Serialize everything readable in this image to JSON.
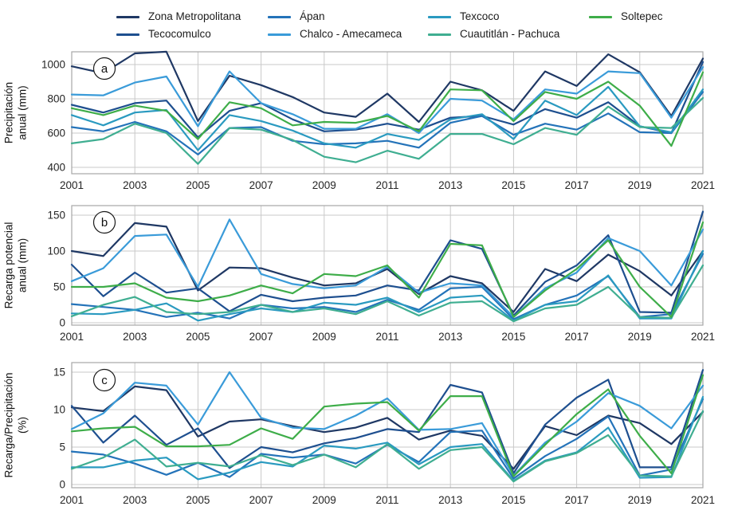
{
  "legend": {
    "items": [
      {
        "label": "Zona Metropolitana",
        "color": "#1f3864"
      },
      {
        "label": "Tecocomulco",
        "color": "#1e4f8f"
      },
      {
        "label": "Ápan",
        "color": "#2473b9"
      },
      {
        "label": "Chalco - Amecameca",
        "color": "#3a9bd9"
      },
      {
        "label": "Texcoco",
        "color": "#2a9ac0"
      },
      {
        "label": "Cuautitlán - Pachuca",
        "color": "#3fae91"
      },
      {
        "label": "Soltepec",
        "color": "#3ead49"
      }
    ]
  },
  "chart_data": [
    {
      "type": "line",
      "panel_label": "a",
      "ylabel": "Precipitación anual (mm)",
      "ylabel_lines": [
        "Precipitación",
        "anual (mm)"
      ],
      "ylim": [
        400,
        1000
      ],
      "yticks": [
        400,
        600,
        800,
        1000
      ],
      "grid": true,
      "legend_position": "top",
      "x": [
        2001,
        2002,
        2003,
        2004,
        2005,
        2006,
        2007,
        2008,
        2009,
        2010,
        2011,
        2012,
        2013,
        2014,
        2015,
        2016,
        2017,
        2018,
        2019,
        2020,
        2021
      ],
      "xticks": [
        2001,
        2003,
        2005,
        2007,
        2009,
        2011,
        2013,
        2015,
        2017,
        2019,
        2021
      ],
      "series": [
        {
          "name": "Zona Metropolitana",
          "color": "#1f3864",
          "values": [
            990,
            950,
            1065,
            1075,
            670,
            935,
            880,
            810,
            720,
            695,
            830,
            665,
            900,
            850,
            730,
            960,
            875,
            1060,
            955,
            700,
            1035
          ]
        },
        {
          "name": "Tecocomulco",
          "color": "#1e4f8f",
          "values": [
            765,
            720,
            775,
            790,
            575,
            730,
            775,
            680,
            610,
            620,
            655,
            620,
            690,
            700,
            650,
            740,
            690,
            780,
            640,
            600,
            1015
          ]
        },
        {
          "name": "Ápan",
          "color": "#2473b9",
          "values": [
            635,
            610,
            665,
            610,
            475,
            630,
            635,
            555,
            535,
            540,
            555,
            515,
            660,
            700,
            590,
            655,
            620,
            715,
            605,
            600,
            840
          ]
        },
        {
          "name": "Chalco - Amecameca",
          "color": "#3a9bd9",
          "values": [
            825,
            820,
            895,
            930,
            640,
            960,
            775,
            710,
            625,
            625,
            710,
            600,
            800,
            790,
            680,
            855,
            830,
            960,
            950,
            690,
            985
          ]
        },
        {
          "name": "Texcoco",
          "color": "#2a9ac0",
          "values": [
            705,
            645,
            720,
            735,
            500,
            705,
            670,
            615,
            540,
            515,
            595,
            560,
            680,
            710,
            565,
            790,
            705,
            870,
            640,
            605,
            855
          ]
        },
        {
          "name": "Cuautitlán - Pachuca",
          "color": "#3fae91",
          "values": [
            540,
            565,
            655,
            600,
            420,
            630,
            620,
            560,
            462,
            430,
            497,
            450,
            595,
            595,
            535,
            630,
            590,
            755,
            635,
            630,
            805
          ]
        },
        {
          "name": "Soltepec",
          "color": "#3ead49",
          "values": [
            745,
            705,
            760,
            730,
            565,
            780,
            745,
            645,
            665,
            660,
            700,
            610,
            855,
            850,
            670,
            840,
            800,
            900,
            760,
            525,
            955
          ]
        }
      ]
    },
    {
      "type": "line",
      "panel_label": "b",
      "ylabel": "Recarga potencial anual (mm)",
      "ylabel_lines": [
        "Recarga potencial",
        "anual (mm)"
      ],
      "ylim": [
        0,
        150
      ],
      "yticks": [
        0,
        50,
        100,
        150
      ],
      "grid": true,
      "x": [
        2001,
        2002,
        2003,
        2004,
        2005,
        2006,
        2007,
        2008,
        2009,
        2010,
        2011,
        2012,
        2013,
        2014,
        2015,
        2016,
        2017,
        2018,
        2019,
        2020,
        2021
      ],
      "xticks": [
        2001,
        2003,
        2005,
        2007,
        2009,
        2011,
        2013,
        2015,
        2017,
        2019,
        2021
      ],
      "series": [
        {
          "name": "Zona Metropolitana",
          "color": "#1f3864",
          "values": [
            100,
            93,
            139,
            134,
            45,
            77,
            76,
            63,
            52,
            55,
            75,
            40,
            65,
            55,
            15,
            75,
            58,
            95,
            72,
            38,
            100
          ]
        },
        {
          "name": "Tecocomulco",
          "color": "#1e4f8f",
          "values": [
            81,
            37,
            70,
            42,
            48,
            16,
            39,
            30,
            35,
            38,
            52,
            45,
            115,
            103,
            10,
            57,
            80,
            122,
            15,
            14,
            155
          ]
        },
        {
          "name": "Ápan",
          "color": "#2473b9",
          "values": [
            26,
            22,
            18,
            8,
            14,
            6,
            25,
            20,
            22,
            15,
            32,
            18,
            48,
            50,
            5,
            25,
            38,
            65,
            8,
            12,
            96
          ]
        },
        {
          "name": "Chalco - Amecameca",
          "color": "#3a9bd9",
          "values": [
            58,
            76,
            121,
            123,
            50,
            144,
            68,
            54,
            48,
            52,
            78,
            42,
            55,
            52,
            8,
            48,
            70,
            118,
            100,
            52,
            130
          ]
        },
        {
          "name": "Texcoco",
          "color": "#2a9ac0",
          "values": [
            13,
            12,
            18,
            27,
            3,
            12,
            20,
            15,
            28,
            25,
            35,
            15,
            35,
            38,
            3,
            25,
            30,
            66,
            6,
            6,
            100
          ]
        },
        {
          "name": "Cuautitlán - Pachuca",
          "color": "#3fae91",
          "values": [
            9,
            25,
            36,
            15,
            12,
            15,
            25,
            15,
            20,
            12,
            30,
            10,
            28,
            30,
            2,
            20,
            25,
            50,
            8,
            7,
            80
          ]
        },
        {
          "name": "Soltepec",
          "color": "#3ead49",
          "values": [
            50,
            50,
            55,
            35,
            30,
            38,
            52,
            41,
            68,
            65,
            80,
            35,
            110,
            108,
            8,
            45,
            75,
            115,
            50,
            8,
            140
          ]
        }
      ]
    },
    {
      "type": "line",
      "panel_label": "c",
      "ylabel": "Recarga/Precipitación (%)",
      "ylabel_lines": [
        "Recarga/Precipitación",
        "(%)"
      ],
      "ylim": [
        0,
        15
      ],
      "yticks": [
        0,
        5,
        10,
        15
      ],
      "grid": true,
      "x": [
        2001,
        2002,
        2003,
        2004,
        2005,
        2006,
        2007,
        2008,
        2009,
        2010,
        2011,
        2012,
        2013,
        2014,
        2015,
        2016,
        2017,
        2018,
        2019,
        2020,
        2021
      ],
      "xticks": [
        2001,
        2003,
        2005,
        2007,
        2009,
        2011,
        2013,
        2015,
        2017,
        2019,
        2021
      ],
      "series": [
        {
          "name": "Zona Metropolitana",
          "color": "#1f3864",
          "values": [
            10.3,
            9.8,
            13.1,
            12.6,
            6.4,
            8.4,
            8.7,
            7.8,
            7.0,
            7.6,
            8.9,
            6.0,
            7.2,
            6.5,
            2.1,
            7.8,
            6.6,
            9.2,
            8.2,
            5.4,
            9.7
          ]
        },
        {
          "name": "Tecocomulco",
          "color": "#1e4f8f",
          "values": [
            10.5,
            5.6,
            9.2,
            5.3,
            7.5,
            2.2,
            5.0,
            4.3,
            5.5,
            6.2,
            7.4,
            7.0,
            13.3,
            12.3,
            1.5,
            8.0,
            11.6,
            14.0,
            2.3,
            2.3,
            15.3
          ]
        },
        {
          "name": "Ápan",
          "color": "#2473b9",
          "values": [
            4.4,
            4.0,
            2.8,
            1.3,
            2.9,
            1.0,
            4.1,
            3.6,
            4.0,
            2.8,
            5.3,
            3.0,
            7.0,
            7.2,
            0.8,
            3.8,
            6.1,
            9.1,
            1.2,
            2.0,
            11.4
          ]
        },
        {
          "name": "Chalco - Amecameca",
          "color": "#3a9bd9",
          "values": [
            7.4,
            9.5,
            13.6,
            13.2,
            8.0,
            15.0,
            8.9,
            7.6,
            7.4,
            9.2,
            11.5,
            7.3,
            7.4,
            8.2,
            1.2,
            5.6,
            8.4,
            12.2,
            10.5,
            7.5,
            13.2
          ]
        },
        {
          "name": "Texcoco",
          "color": "#2a9ac0",
          "values": [
            2.3,
            2.3,
            3.2,
            3.6,
            0.7,
            1.6,
            3.0,
            2.4,
            5.2,
            4.8,
            5.6,
            2.7,
            5.0,
            5.4,
            0.5,
            3.2,
            4.3,
            7.6,
            0.9,
            1.0,
            11.7
          ]
        },
        {
          "name": "Cuautitlán - Pachuca",
          "color": "#3fae91",
          "values": [
            2.1,
            3.6,
            6.0,
            2.4,
            2.9,
            2.4,
            3.9,
            2.6,
            4.0,
            2.3,
            5.4,
            2.1,
            4.6,
            5.0,
            0.4,
            3.1,
            4.2,
            6.6,
            1.2,
            1.1,
            9.8
          ]
        },
        {
          "name": "Soltepec",
          "color": "#3ead49",
          "values": [
            7.1,
            7.5,
            7.7,
            5.1,
            5.1,
            5.3,
            7.5,
            6.1,
            10.4,
            10.8,
            11.0,
            7.2,
            11.8,
            11.8,
            1.1,
            5.3,
            9.4,
            12.7,
            6.5,
            1.5,
            14.6
          ]
        }
      ]
    }
  ]
}
